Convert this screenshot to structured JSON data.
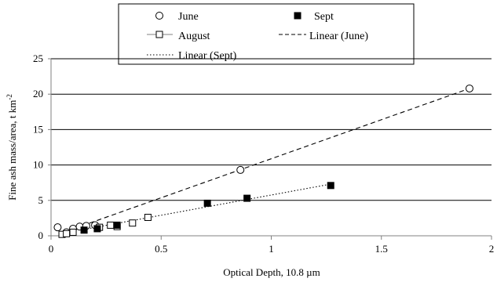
{
  "chart_data": {
    "type": "scatter",
    "title": "",
    "xlabel": "Optical Depth, 10.8 µm",
    "ylabel": "Fine ash mass/area, t km",
    "ylabel_superscript": "-2",
    "xlim": [
      0,
      2
    ],
    "ylim": [
      0,
      25
    ],
    "xticks": [
      0,
      0.5,
      1,
      1.5,
      2
    ],
    "xtick_labels": [
      "0",
      "0.5",
      "1",
      "1.5",
      "2"
    ],
    "yticks": [
      0,
      5,
      10,
      15,
      20,
      25
    ],
    "ytick_labels": [
      "0",
      "5",
      "10",
      "15",
      "20",
      "25"
    ],
    "grid": "horizontal",
    "legend_position": "top-center",
    "series": [
      {
        "name": "June",
        "marker": "open-circle",
        "x": [
          0.03,
          0.07,
          0.1,
          0.13,
          0.16,
          0.2,
          0.86,
          1.9
        ],
        "y": [
          1.2,
          0.5,
          1.0,
          1.3,
          1.4,
          1.5,
          9.3,
          20.8
        ]
      },
      {
        "name": "August",
        "marker": "open-square-line",
        "x": [
          0.05,
          0.07,
          0.1,
          0.22,
          0.27,
          0.3,
          0.37,
          0.44
        ],
        "y": [
          0.2,
          0.3,
          0.5,
          1.2,
          1.5,
          1.3,
          1.8,
          2.6
        ]
      },
      {
        "name": "Sept",
        "marker": "filled-square",
        "x": [
          0.15,
          0.21,
          0.3,
          0.71,
          0.89,
          1.27
        ],
        "y": [
          0.8,
          1.0,
          1.5,
          4.6,
          5.3,
          7.1
        ]
      }
    ],
    "trendlines": [
      {
        "name": "Linear (June)",
        "style": "dashed",
        "x": [
          0.04,
          1.9
        ],
        "y": [
          0.3,
          20.8
        ]
      },
      {
        "name": "Linear (Sept)",
        "style": "dotted",
        "x": [
          0.15,
          1.27
        ],
        "y": [
          0.9,
          7.3
        ]
      }
    ]
  },
  "colors": {
    "marker": "#000000",
    "trendline": "#000000",
    "grid": "#000000",
    "axis": "#808080"
  }
}
